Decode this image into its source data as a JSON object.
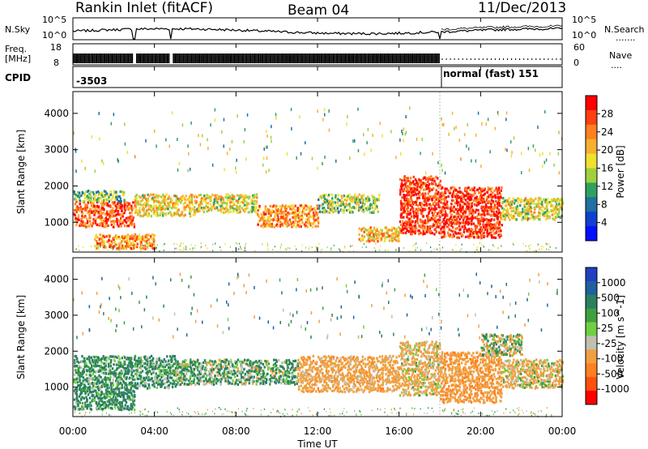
{
  "header": {
    "station": "Rankin Inlet (fitACF)",
    "beam": "Beam 04",
    "date": "11/Dec/2013"
  },
  "top_panels": {
    "nsky_label": "N.Sky",
    "nsky_ticks": [
      "10^5",
      "10^0"
    ],
    "nsearch_label": "N.Search",
    "nsearch_ticks": [
      "10^5",
      "10^0"
    ],
    "freq_label_1": "Freq.",
    "freq_label_2": "[MHz]",
    "freq_ticks": [
      "18",
      "8"
    ],
    "nave_label": "Nave",
    "nave_ticks": [
      "60",
      "0"
    ],
    "cpid_label": "CPID",
    "cpid_1": "-3503",
    "cpid_2": "normal (fast) 151"
  },
  "axes": {
    "xlabel": "Time UT",
    "x_ticks": [
      "00:00",
      "04:00",
      "08:00",
      "12:00",
      "16:00",
      "20:00",
      "00:00"
    ],
    "ylabel_power": "Slant Range [km]",
    "ylabel_velocity": "Slant Range [km]",
    "y_ticks": [
      "4000",
      "3000",
      "2000",
      "1000"
    ]
  },
  "power_colorbar": {
    "label": "Power [dB]",
    "ticks": [
      "28",
      "24",
      "20",
      "16",
      "12",
      "8",
      "4"
    ],
    "colors": [
      "#ff0000",
      "#ff4010",
      "#ff8020",
      "#f8b030",
      "#f0e030",
      "#a0d040",
      "#30a060",
      "#2070a0",
      "#1040d0",
      "#0010ff"
    ]
  },
  "velocity_colorbar": {
    "label": "Velocity [m s^-1]",
    "ticks": [
      "1000",
      "500",
      "100",
      "25",
      "-25",
      "-100",
      "-500",
      "-1000"
    ],
    "colors": [
      "#2040c0",
      "#2060a0",
      "#2a8060",
      "#40a040",
      "#70d040",
      "#c0c0b0",
      "#f0a040",
      "#ff8020",
      "#ff5010",
      "#ff0000"
    ]
  },
  "chart_data": [
    {
      "type": "heatmap",
      "name_panel": "power",
      "x_range_hours": [
        0,
        24
      ],
      "y_range_km": [
        180,
        4600
      ],
      "colorbar_range_db": [
        0,
        30
      ],
      "regions": [
        {
          "t": [
            0,
            3
          ],
          "r": [
            900,
            1600
          ],
          "db": 26
        },
        {
          "t": [
            0,
            2.5
          ],
          "r": [
            1600,
            1900
          ],
          "db": 12
        },
        {
          "t": [
            1,
            4
          ],
          "r": [
            300,
            700
          ],
          "db": 22
        },
        {
          "t": [
            3,
            6
          ],
          "r": [
            1200,
            1800
          ],
          "db": 18
        },
        {
          "t": [
            6,
            9
          ],
          "r": [
            1300,
            1800
          ],
          "db": 17
        },
        {
          "t": [
            9,
            12
          ],
          "r": [
            900,
            1500
          ],
          "db": 22
        },
        {
          "t": [
            12,
            15
          ],
          "r": [
            1300,
            1800
          ],
          "db": 14
        },
        {
          "t": [
            14,
            16
          ],
          "r": [
            500,
            900
          ],
          "db": 20
        },
        {
          "t": [
            16,
            18
          ],
          "r": [
            700,
            2300
          ],
          "db": 28
        },
        {
          "t": [
            18,
            21
          ],
          "r": [
            600,
            2000
          ],
          "db": 28
        },
        {
          "t": [
            21,
            24
          ],
          "r": [
            1100,
            1700
          ],
          "db": 16
        }
      ]
    },
    {
      "type": "heatmap",
      "name_panel": "velocity",
      "x_range_hours": [
        0,
        24
      ],
      "y_range_km": [
        180,
        4600
      ],
      "colorbar_range_ms": [
        -1000,
        1000
      ],
      "regions": [
        {
          "t": [
            0,
            5
          ],
          "r": [
            1000,
            1900
          ],
          "v": 150
        },
        {
          "t": [
            0,
            3
          ],
          "r": [
            400,
            1000
          ],
          "v": 200
        },
        {
          "t": [
            5,
            11
          ],
          "r": [
            1100,
            1800
          ],
          "v": 100
        },
        {
          "t": [
            11,
            16
          ],
          "r": [
            900,
            1900
          ],
          "v": -300
        },
        {
          "t": [
            16,
            18
          ],
          "r": [
            800,
            2300
          ],
          "v": -200
        },
        {
          "t": [
            18,
            21
          ],
          "r": [
            600,
            2000
          ],
          "v": -400
        },
        {
          "t": [
            21,
            24
          ],
          "r": [
            1000,
            1800
          ],
          "v": -150
        },
        {
          "t": [
            20,
            22
          ],
          "r": [
            1900,
            2500
          ],
          "v": 0
        }
      ]
    }
  ]
}
